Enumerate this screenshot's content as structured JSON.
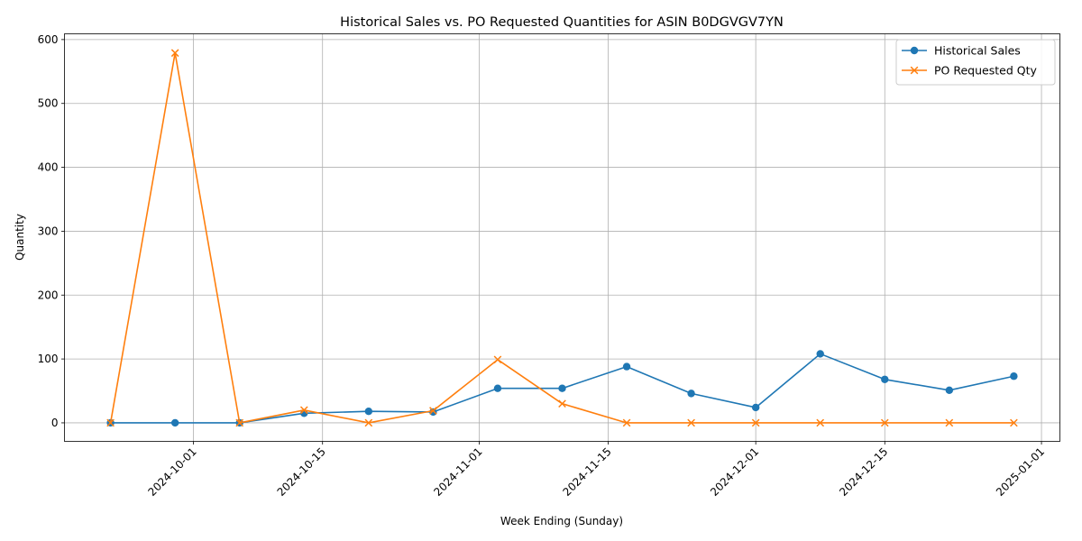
{
  "chart_data": {
    "type": "line",
    "title": "Historical Sales vs. PO Requested Quantities for ASIN B0DGVGV7YN",
    "xlabel": "Week Ending (Sunday)",
    "ylabel": "Quantity",
    "x_type": "date",
    "x": [
      "2024-09-22",
      "2024-09-29",
      "2024-10-06",
      "2024-10-13",
      "2024-10-20",
      "2024-10-27",
      "2024-11-03",
      "2024-11-10",
      "2024-11-17",
      "2024-11-24",
      "2024-12-01",
      "2024-12-08",
      "2024-12-15",
      "2024-12-22",
      "2024-12-29"
    ],
    "xlim": [
      "2024-09-17",
      "2025-01-03"
    ],
    "ylim": [
      -29,
      609
    ],
    "x_ticks": [
      "2024-10-01",
      "2024-10-15",
      "2024-11-01",
      "2024-11-15",
      "2024-12-01",
      "2024-12-15",
      "2025-01-01"
    ],
    "y_ticks": [
      0,
      100,
      200,
      300,
      400,
      500,
      600
    ],
    "grid": true,
    "legend_position": "top-right",
    "series": [
      {
        "name": "Historical Sales",
        "color": "#1f77b4",
        "marker": "circle",
        "values": [
          0,
          0,
          0,
          15,
          18,
          17,
          54,
          54,
          88,
          46,
          24,
          108,
          68,
          51,
          73
        ]
      },
      {
        "name": "PO Requested Qty",
        "color": "#ff7f0e",
        "marker": "x",
        "values": [
          0,
          579,
          0,
          20,
          0,
          19,
          99,
          30,
          0,
          0,
          0,
          0,
          0,
          0,
          0
        ]
      }
    ]
  }
}
